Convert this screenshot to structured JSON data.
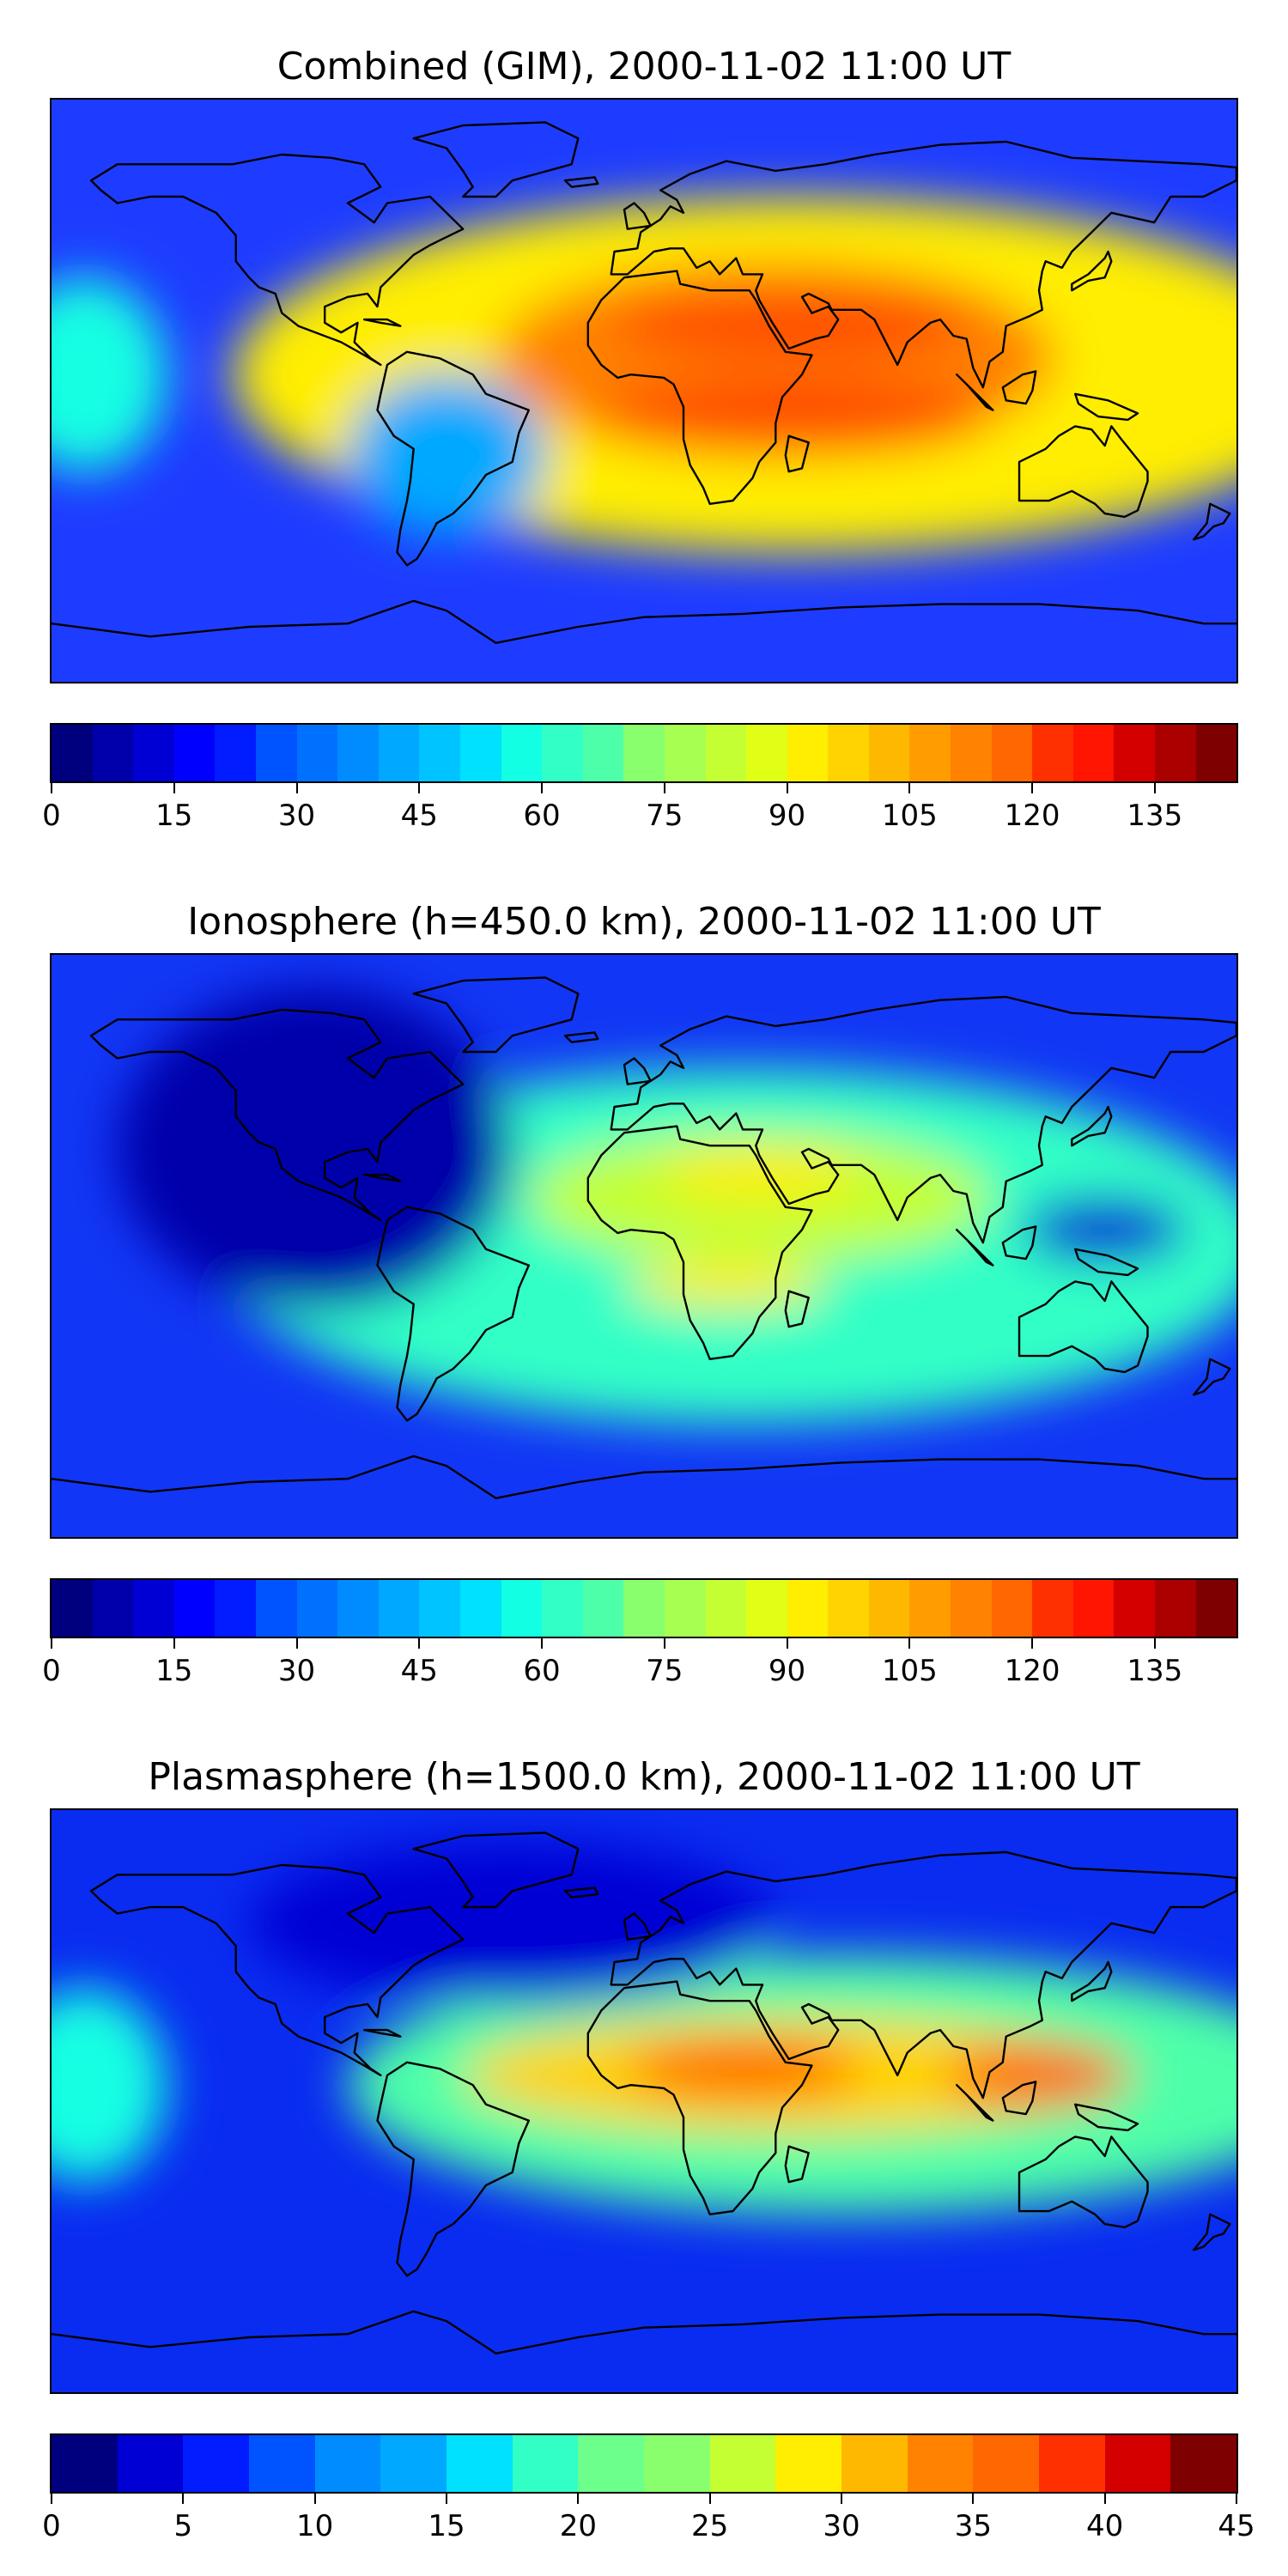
{
  "panels": [
    {
      "id": "combined",
      "title": "Combined (GIM), 2000-11-02 11:00 UT",
      "colorbar": {
        "min": 0,
        "max": 145,
        "step": 5,
        "ticks": [
          0,
          15,
          30,
          45,
          60,
          75,
          90,
          105,
          120,
          135
        ]
      },
      "field": {
        "background": "#1e3cff",
        "blobs": [
          {
            "lon": 45,
            "lat": 5,
            "level": 92,
            "rx": 170,
            "ry": 55
          },
          {
            "lon": 40,
            "lat": 10,
            "level": 110,
            "rx": 85,
            "ry": 30
          },
          {
            "lon": 45,
            "lat": -8,
            "level": 118,
            "rx": 60,
            "ry": 12
          },
          {
            "lon": 45,
            "lat": 20,
            "level": 118,
            "rx": 55,
            "ry": 10
          },
          {
            "lon": -170,
            "lat": 5,
            "level": 55,
            "rx": 25,
            "ry": 30
          },
          {
            "lon": -60,
            "lat": -20,
            "level": 45,
            "rx": 30,
            "ry": 25
          }
        ]
      }
    },
    {
      "id": "ionosphere",
      "title": "Ionosphere  (h=450.0 km), 2000-11-02 11:00 UT",
      "colorbar": {
        "min": 0,
        "max": 145,
        "step": 5,
        "ticks": [
          0,
          15,
          30,
          45,
          60,
          75,
          90,
          105,
          120,
          135
        ]
      },
      "field": {
        "background": "#1236f5",
        "blobs": [
          {
            "lon": 30,
            "lat": 0,
            "level": 62,
            "rx": 160,
            "ry": 55
          },
          {
            "lon": 35,
            "lat": 15,
            "level": 82,
            "rx": 70,
            "ry": 20
          },
          {
            "lon": 35,
            "lat": 22,
            "level": 95,
            "rx": 30,
            "ry": 8
          },
          {
            "lon": 25,
            "lat": -12,
            "level": 92,
            "rx": 30,
            "ry": 7
          },
          {
            "lon": -100,
            "lat": 30,
            "level": 8,
            "rx": 60,
            "ry": 50
          },
          {
            "lon": 140,
            "lat": 5,
            "level": 10,
            "rx": 25,
            "ry": 10
          }
        ]
      }
    },
    {
      "id": "plasmasphere",
      "title": "Plasmasphere (h=1500.0 km), 2000-11-02 11:00 UT",
      "colorbar": {
        "min": 0,
        "max": 45,
        "step": 2.5,
        "ticks": [
          0,
          5,
          10,
          15,
          20,
          25,
          30,
          35,
          40,
          45
        ]
      },
      "field": {
        "background": "#0a2cf0",
        "blobs": [
          {
            "lon": 60,
            "lat": 5,
            "level": 20,
            "rx": 150,
            "ry": 40
          },
          {
            "lon": 45,
            "lat": 8,
            "level": 30,
            "rx": 100,
            "ry": 18
          },
          {
            "lon": 30,
            "lat": 10,
            "level": 36,
            "rx": 35,
            "ry": 9
          },
          {
            "lon": 120,
            "lat": 8,
            "level": 36,
            "rx": 28,
            "ry": 10
          },
          {
            "lon": -170,
            "lat": 5,
            "level": 18,
            "rx": 25,
            "ry": 30
          },
          {
            "lon": -40,
            "lat": 55,
            "level": 4,
            "rx": 80,
            "ry": 25
          }
        ]
      }
    }
  ],
  "jet_colors": [
    "#00007f",
    "#0000aa",
    "#0000d4",
    "#0000ff",
    "#001cff",
    "#0038ff",
    "#0054ff",
    "#0070ff",
    "#008cff",
    "#00a8ff",
    "#00c4ff",
    "#00e0ff",
    "#13ffe3",
    "#31ffc6",
    "#4effa9",
    "#6cff8b",
    "#89ff6e",
    "#a6ff51",
    "#c4ff33",
    "#e1ff16",
    "#ffee00",
    "#ffd300",
    "#ffb800",
    "#ff9d00",
    "#ff8200",
    "#ff6700",
    "#ff4c00",
    "#ff3000",
    "#ff1500",
    "#d40000",
    "#aa0000",
    "#7f0000"
  ],
  "coastline_color": "#000000"
}
